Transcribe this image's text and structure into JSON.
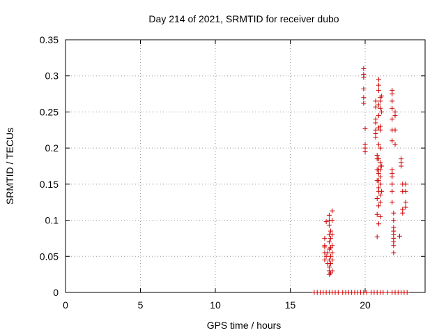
{
  "chart_data": {
    "type": "scatter",
    "title": "Day 214 of 2021, SRMTID for receiver dubo",
    "xlabel": "GPS time / hours",
    "ylabel": "SRMTID / TECUs",
    "xlim": [
      0,
      24
    ],
    "ylim": [
      0,
      0.35
    ],
    "xticks": [
      0,
      5,
      10,
      15,
      20
    ],
    "yticks": [
      0,
      0.05,
      0.1,
      0.15,
      0.2,
      0.25,
      0.3,
      0.35
    ],
    "xtick_labels": [
      "0",
      "5",
      "10",
      "15",
      "20"
    ],
    "ytick_labels": [
      "0",
      "0.05",
      "0.1",
      "0.15",
      "0.2",
      "0.25",
      "0.3",
      "0.35"
    ],
    "grid": true,
    "marker": "+",
    "color": "#cc0000",
    "series": [
      {
        "name": "SRMTID",
        "points": [
          [
            16.6,
            0
          ],
          [
            16.8,
            0
          ],
          [
            17.0,
            0
          ],
          [
            17.2,
            0
          ],
          [
            17.4,
            0
          ],
          [
            17.6,
            0
          ],
          [
            17.8,
            0
          ],
          [
            18.0,
            0
          ],
          [
            18.2,
            0
          ],
          [
            18.5,
            0
          ],
          [
            18.7,
            0
          ],
          [
            18.9,
            0
          ],
          [
            19.1,
            0
          ],
          [
            19.3,
            0
          ],
          [
            19.5,
            0
          ],
          [
            19.7,
            0
          ],
          [
            19.9,
            0
          ],
          [
            20.1,
            0
          ],
          [
            20.4,
            0
          ],
          [
            20.6,
            0
          ],
          [
            20.8,
            0
          ],
          [
            21.0,
            0
          ],
          [
            21.2,
            0
          ],
          [
            21.5,
            0
          ],
          [
            21.8,
            0
          ],
          [
            22.0,
            0
          ],
          [
            22.2,
            0
          ],
          [
            22.4,
            0
          ],
          [
            22.6,
            0
          ],
          [
            22.8,
            0
          ],
          [
            17.3,
            0.045
          ],
          [
            17.3,
            0.055
          ],
          [
            17.3,
            0.063
          ],
          [
            17.3,
            0.065
          ],
          [
            17.3,
            0.075
          ],
          [
            17.4,
            0.098
          ],
          [
            17.4,
            0.05
          ],
          [
            17.5,
            0.04
          ],
          [
            17.5,
            0.055
          ],
          [
            17.6,
            0.025
          ],
          [
            17.6,
            0.03
          ],
          [
            17.6,
            0.035
          ],
          [
            17.6,
            0.045
          ],
          [
            17.6,
            0.06
          ],
          [
            17.6,
            0.07
          ],
          [
            17.6,
            0.08
          ],
          [
            17.6,
            0.093
          ],
          [
            17.6,
            0.1
          ],
          [
            17.6,
            0.107
          ],
          [
            17.7,
            0.027
          ],
          [
            17.7,
            0.04
          ],
          [
            17.7,
            0.05
          ],
          [
            17.7,
            0.062
          ],
          [
            17.7,
            0.075
          ],
          [
            17.7,
            0.085
          ],
          [
            17.8,
            0.03
          ],
          [
            17.8,
            0.045
          ],
          [
            17.8,
            0.055
          ],
          [
            17.8,
            0.065
          ],
          [
            17.8,
            0.08
          ],
          [
            17.8,
            0.1
          ],
          [
            17.8,
            0.113
          ],
          [
            19.9,
            0.31
          ],
          [
            19.9,
            0.302
          ],
          [
            19.9,
            0.298
          ],
          [
            19.9,
            0.282
          ],
          [
            19.9,
            0.27
          ],
          [
            19.9,
            0.262
          ],
          [
            20.0,
            0.227
          ],
          [
            20.0,
            0.205
          ],
          [
            20.0,
            0.2
          ],
          [
            20.0,
            0.195
          ],
          [
            20.7,
            0.265
          ],
          [
            20.7,
            0.257
          ],
          [
            20.7,
            0.24
          ],
          [
            20.7,
            0.235
          ],
          [
            20.7,
            0.225
          ],
          [
            20.7,
            0.22
          ],
          [
            20.7,
            0.215
          ],
          [
            20.8,
            0.19
          ],
          [
            20.8,
            0.185
          ],
          [
            20.8,
            0.17
          ],
          [
            20.8,
            0.155
          ],
          [
            20.8,
            0.13
          ],
          [
            20.8,
            0.108
          ],
          [
            20.8,
            0.077
          ],
          [
            20.9,
            0.295
          ],
          [
            20.9,
            0.287
          ],
          [
            20.9,
            0.28
          ],
          [
            20.9,
            0.26
          ],
          [
            20.9,
            0.245
          ],
          [
            20.9,
            0.228
          ],
          [
            20.9,
            0.205
          ],
          [
            20.9,
            0.185
          ],
          [
            20.9,
            0.17
          ],
          [
            20.9,
            0.165
          ],
          [
            20.9,
            0.155
          ],
          [
            20.9,
            0.145
          ],
          [
            20.9,
            0.14
          ],
          [
            20.9,
            0.12
          ],
          [
            20.9,
            0.095
          ],
          [
            21.0,
            0.27
          ],
          [
            21.0,
            0.265
          ],
          [
            21.0,
            0.255
          ],
          [
            21.0,
            0.23
          ],
          [
            21.0,
            0.225
          ],
          [
            21.0,
            0.2
          ],
          [
            21.0,
            0.18
          ],
          [
            21.0,
            0.175
          ],
          [
            21.0,
            0.17
          ],
          [
            21.0,
            0.16
          ],
          [
            21.0,
            0.15
          ],
          [
            21.0,
            0.135
          ],
          [
            21.0,
            0.125
          ],
          [
            21.0,
            0.105
          ],
          [
            21.1,
            0.272
          ],
          [
            21.1,
            0.25
          ],
          [
            21.1,
            0.175
          ],
          [
            21.1,
            0.14
          ],
          [
            21.8,
            0.28
          ],
          [
            21.8,
            0.275
          ],
          [
            21.8,
            0.265
          ],
          [
            21.8,
            0.255
          ],
          [
            21.8,
            0.24
          ],
          [
            21.8,
            0.225
          ],
          [
            21.8,
            0.21
          ],
          [
            21.8,
            0.17
          ],
          [
            21.8,
            0.165
          ],
          [
            21.8,
            0.16
          ],
          [
            21.8,
            0.15
          ],
          [
            21.8,
            0.14
          ],
          [
            21.8,
            0.125
          ],
          [
            21.9,
            0.1
          ],
          [
            21.9,
            0.09
          ],
          [
            21.9,
            0.085
          ],
          [
            21.9,
            0.08
          ],
          [
            21.9,
            0.075
          ],
          [
            21.9,
            0.07
          ],
          [
            21.9,
            0.065
          ],
          [
            21.9,
            0.055
          ],
          [
            21.9,
            0.11
          ],
          [
            22.0,
            0.25
          ],
          [
            22.0,
            0.245
          ],
          [
            22.0,
            0.225
          ],
          [
            22.0,
            0.205
          ],
          [
            22.3,
            0.078
          ],
          [
            22.4,
            0.185
          ],
          [
            22.4,
            0.18
          ],
          [
            22.4,
            0.175
          ],
          [
            22.5,
            0.15
          ],
          [
            22.5,
            0.14
          ],
          [
            22.5,
            0.115
          ],
          [
            22.5,
            0.11
          ],
          [
            22.7,
            0.15
          ],
          [
            22.7,
            0.14
          ],
          [
            22.7,
            0.125
          ],
          [
            22.7,
            0.118
          ]
        ]
      }
    ]
  }
}
